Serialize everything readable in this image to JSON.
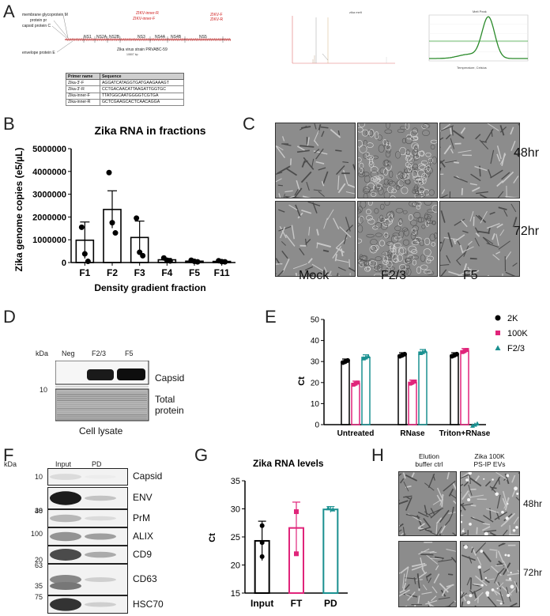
{
  "panels": {
    "a": "A",
    "b": "B",
    "c": "C",
    "d": "D",
    "e": "E",
    "f": "F",
    "g": "G",
    "h": "H"
  },
  "panel_a": {
    "genome_labels_left": [
      "membrane glycoprotein M",
      "protein pr",
      "capsid protein C",
      "envelope protein E"
    ],
    "genome_labels_red": [
      "ZIKV-inner-R",
      "ZIKV-inner-F",
      "ZIKV-F",
      "ZIKV-R"
    ],
    "genome_segments": [
      "NS1",
      "NS2A",
      "NS2B",
      "NS3",
      "NS4A",
      "NS4B",
      "NS5"
    ],
    "strain": "Zika virus strain PRVABC-59",
    "strain_size": "10807 bp",
    "plot2_title": "zika melt",
    "plot3_title": "Melt Peak",
    "plot3_xlabel": "Temperature, Celsius",
    "table_headers": [
      "Primer name",
      "Sequence"
    ],
    "table_rows": [
      [
        "Zika-3'-F",
        "AGGATCATAGGTGATGAAGAAAGT"
      ],
      [
        "Zika-3'-R",
        "CCTGACAACATTAAGATTGGTGC"
      ],
      [
        "Zika-inner-F",
        "TTATGGCAATGGGGTCGTGA"
      ],
      [
        "Zika-inner-R",
        "GCTCGAAGCACTCAACAGGA"
      ]
    ]
  },
  "panel_b": {
    "chart_data": {
      "type": "bar",
      "title": "Zika RNA in fractions",
      "xlabel": "Density gradient fraction",
      "ylabel": "Zika genome copies (e5/µL)",
      "categories": [
        "F1",
        "F2",
        "F3",
        "F4",
        "F5",
        "F11"
      ],
      "values": [
        980000,
        2330000,
        1100000,
        120000,
        60000,
        50000
      ],
      "errors": [
        800000,
        820000,
        720000,
        60000,
        30000,
        20000
      ],
      "points": [
        [
          1550000,
          380000,
          50000
        ],
        [
          3950000,
          1750000,
          1300000
        ],
        [
          1950000,
          450000,
          300000
        ],
        [
          200000,
          100000,
          70000
        ],
        [
          100000,
          50000,
          30000
        ],
        [
          80000,
          40000,
          30000
        ]
      ],
      "ylim": [
        0,
        5000000
      ],
      "yticks": [
        "0",
        "1000000",
        "2000000",
        "3000000",
        "4000000",
        "5000000"
      ]
    }
  },
  "panel_c": {
    "row_labels": [
      "48hr",
      "72hr"
    ],
    "col_labels": [
      "Mock",
      "F2/3",
      "F5"
    ]
  },
  "panel_d": {
    "kda": "kDa",
    "marker": "10",
    "lanes": [
      "Neg",
      "F2/3",
      "F5"
    ],
    "bands": [
      "Capsid",
      "Total protein"
    ],
    "caption": "Cell lysate"
  },
  "panel_e": {
    "chart_data": {
      "type": "bar",
      "ylabel": "Ct",
      "categories": [
        "Untreated",
        "RNase",
        "Triton+RNase"
      ],
      "series": [
        {
          "name": "2K",
          "values": [
            30,
            33,
            33
          ],
          "color": "#000000"
        },
        {
          "name": "100K",
          "values": [
            19.5,
            20,
            35
          ],
          "color": "#e0247a"
        },
        {
          "name": "F2/3",
          "values": [
            32,
            34.5,
            0
          ],
          "color": "#1a9090"
        }
      ],
      "ylim": [
        0,
        50
      ],
      "yticks": [
        "0",
        "10",
        "20",
        "30",
        "40",
        "50"
      ]
    }
  },
  "panel_f": {
    "kda": "kDa",
    "lanes": [
      "Input",
      "PD"
    ],
    "rows": [
      {
        "marker": "10",
        "label": "Capsid"
      },
      {
        "marker": "48",
        "label": "ENV"
      },
      {
        "marker": "30",
        "label": "PrM"
      },
      {
        "marker": "100",
        "label": "ALIX"
      },
      {
        "marker": "20",
        "label": "CD9"
      },
      {
        "marker": "63",
        "label": "CD63"
      },
      {
        "marker": "35",
        "label": ""
      },
      {
        "marker": "75",
        "label": "HSC70"
      }
    ]
  },
  "panel_g": {
    "chart_data": {
      "type": "bar",
      "title": "Zika RNA levels",
      "ylabel": "Ct",
      "categories": [
        "Input",
        "FT",
        "PD"
      ],
      "values": [
        24.3,
        26.6,
        29.9
      ],
      "errors": [
        3.5,
        4.6,
        0.5
      ],
      "colors": [
        "#000000",
        "#e0247a",
        "#1a9090"
      ],
      "ylim": [
        15,
        35
      ],
      "yticks": [
        "15",
        "20",
        "25",
        "30",
        "35"
      ]
    }
  },
  "panel_h": {
    "col_labels": [
      "Elution buffer ctrl",
      "Zika 100K PS-IP EVs"
    ],
    "col_label_lines": [
      [
        "Elution",
        "buffer ctrl"
      ],
      [
        "Zika 100K",
        "PS-IP EVs"
      ]
    ],
    "row_labels": [
      "48hr",
      "72hr"
    ]
  }
}
